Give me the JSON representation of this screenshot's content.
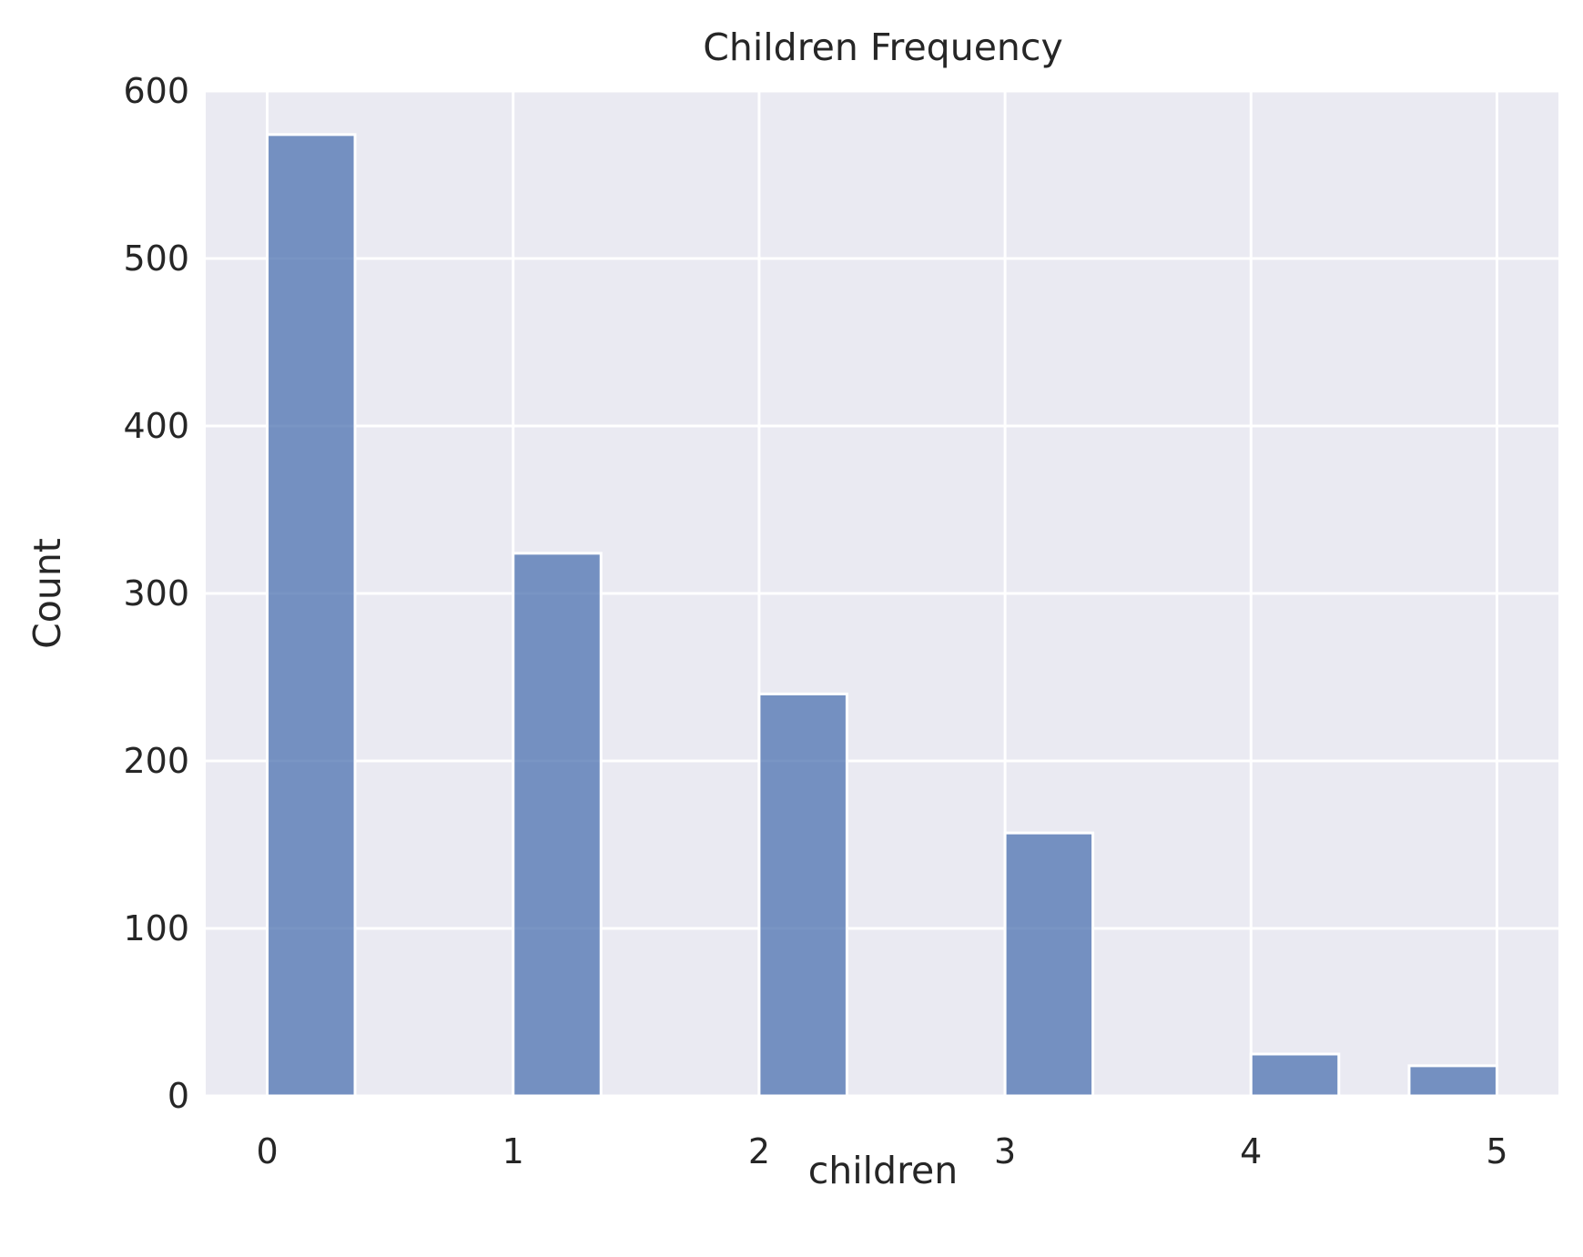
{
  "chart_data": {
    "type": "bar",
    "title": "Children Frequency",
    "xlabel": "children",
    "ylabel": "Count",
    "x": [
      0,
      1,
      2,
      3,
      4,
      5
    ],
    "values": [
      574,
      324,
      240,
      157,
      25,
      18
    ],
    "xlim": [
      -0.25,
      5.25
    ],
    "ylim": [
      0,
      600
    ],
    "xticks": [
      0,
      1,
      2,
      3,
      4,
      5
    ],
    "xtick_labels": [
      "0",
      "1",
      "2",
      "3",
      "4",
      "5"
    ],
    "yticks": [
      0,
      100,
      200,
      300,
      400,
      500,
      600
    ],
    "ytick_labels": [
      "0",
      "100",
      "200",
      "300",
      "400",
      "500",
      "600"
    ],
    "grid": true,
    "colors": {
      "plot_background": "#eaeaf2",
      "bar_fill": "#4c72b0",
      "grid": "#ffffff",
      "text": "#262626"
    }
  }
}
